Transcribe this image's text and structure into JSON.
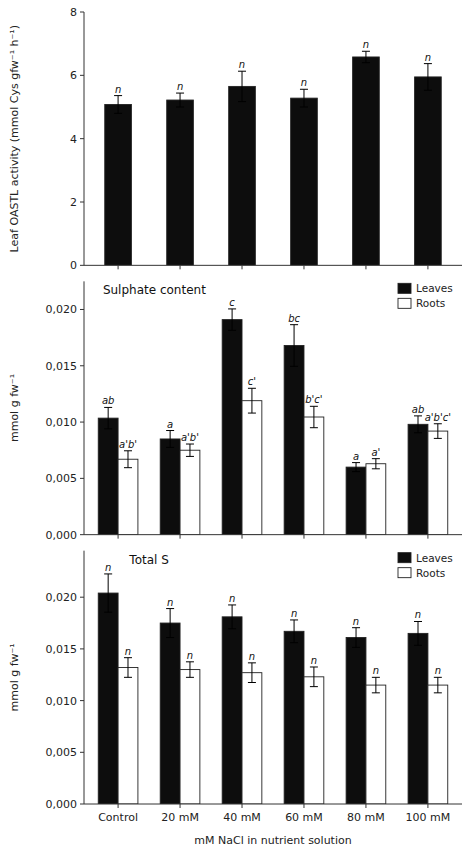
{
  "chart_data": [
    {
      "type": "bar",
      "y_label": "Leaf OASTL activity (mmol Cys gfw⁻¹ h⁻¹)",
      "categories": [
        "Control",
        "20 mM",
        "40 mM",
        "60 mM",
        "80 mM",
        "100 mM"
      ],
      "values": [
        5.08,
        5.22,
        5.65,
        5.28,
        6.58,
        5.95
      ],
      "errors": [
        0.28,
        0.22,
        0.48,
        0.28,
        0.18,
        0.42
      ],
      "letters": [
        "n",
        "n",
        "n",
        "n",
        "n",
        "n"
      ],
      "color": "#0d0d0d",
      "ylim": [
        0,
        8
      ],
      "yticks": [
        0,
        2,
        4,
        6,
        8
      ],
      "tick_labels": "y"
    },
    {
      "type": "bar",
      "title": "Sulphate content",
      "y_label": "mmol g fw⁻¹",
      "categories": [
        "Control",
        "20 mM",
        "40 mM",
        "60 mM",
        "80 mM",
        "100 mM"
      ],
      "series": [
        {
          "name": "Leaves",
          "color": "#0d0d0d",
          "values": [
            0.01035,
            0.0085,
            0.0191,
            0.0168,
            0.006,
            0.0098
          ],
          "errors": [
            0.00095,
            0.00075,
            0.00095,
            0.00185,
            0.0004,
            0.00075
          ],
          "letters": [
            "ab",
            "a",
            "c",
            "bc",
            "a",
            "ab"
          ]
        },
        {
          "name": "Roots",
          "color": "#ffffff",
          "values": [
            0.0067,
            0.0075,
            0.0119,
            0.01045,
            0.0063,
            0.0092
          ],
          "errors": [
            0.00075,
            0.00055,
            0.0011,
            0.00095,
            0.00045,
            0.00065
          ],
          "letters": [
            "a'b'",
            "a'b'",
            "c'",
            "b'c'",
            "a'",
            "a'b'c'"
          ]
        }
      ],
      "ylim": [
        0,
        0.0225
      ],
      "yticks": [
        {
          "value": 0.0,
          "label": "0,000"
        },
        {
          "value": 0.005,
          "label": "0,005"
        },
        {
          "value": 0.01,
          "label": "0,010"
        },
        {
          "value": 0.015,
          "label": "0,015"
        },
        {
          "value": 0.02,
          "label": "0,020"
        }
      ],
      "legend": "upper right",
      "tick_labels": "y"
    },
    {
      "type": "bar",
      "title": "Total S",
      "y_label": "mmol g fw⁻¹",
      "x_label": "mM NaCl in nutrient solution",
      "categories": [
        "Control",
        "20 mM",
        "40 mM",
        "60 mM",
        "80 mM",
        "100 mM"
      ],
      "series": [
        {
          "name": "Leaves",
          "color": "#0d0d0d",
          "values": [
            0.0204,
            0.0175,
            0.0181,
            0.0167,
            0.0161,
            0.0165
          ],
          "errors": [
            0.00185,
            0.0014,
            0.00115,
            0.0011,
            0.00095,
            0.00115
          ],
          "letters": [
            "n",
            "n",
            "n",
            "n",
            "n",
            "n"
          ]
        },
        {
          "name": "Roots",
          "color": "#ffffff",
          "values": [
            0.0132,
            0.013,
            0.0127,
            0.0123,
            0.0115,
            0.0115
          ],
          "errors": [
            0.00095,
            0.00075,
            0.00095,
            0.00095,
            0.00075,
            0.00075
          ],
          "letters": [
            "n",
            "n",
            "n",
            "n",
            "n",
            "n"
          ]
        }
      ],
      "ylim": [
        0,
        0.0245
      ],
      "yticks": [
        {
          "value": 0.0,
          "label": "0,000"
        },
        {
          "value": 0.005,
          "label": "0,005"
        },
        {
          "value": 0.01,
          "label": "0,010"
        },
        {
          "value": 0.015,
          "label": "0,015"
        },
        {
          "value": 0.02,
          "label": "0,020"
        }
      ],
      "legend": "upper right"
    }
  ]
}
